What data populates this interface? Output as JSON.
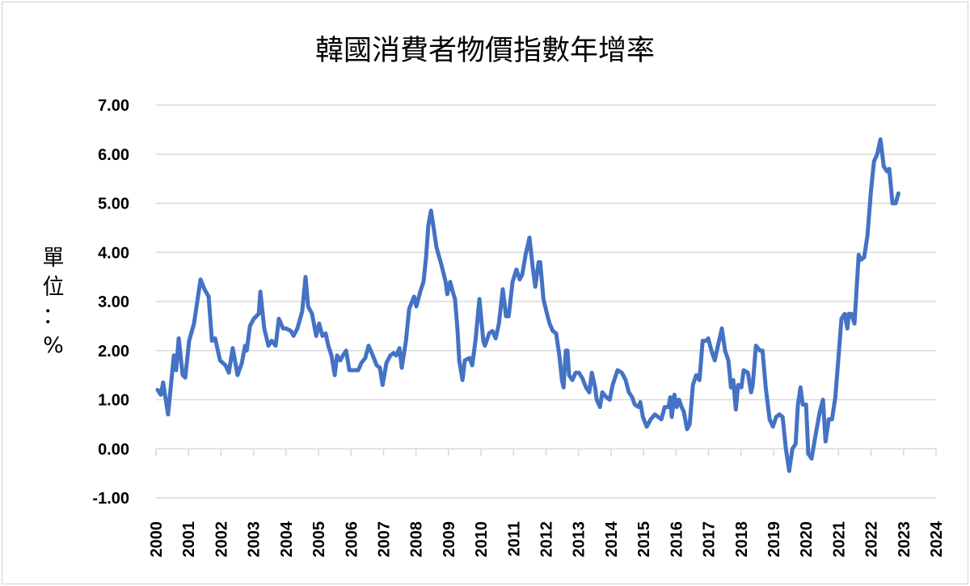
{
  "chart_data": {
    "type": "line",
    "title": "韓國消費者物價指數年增率",
    "ylabel": "單位：%",
    "ylabel_chars": [
      "單",
      "位",
      "：",
      "%"
    ],
    "xlabel": "",
    "ylim": [
      -1,
      7
    ],
    "xlim": [
      2000,
      2024
    ],
    "y_ticks": [
      "7.00",
      "6.00",
      "5.00",
      "4.00",
      "3.00",
      "2.00",
      "1.00",
      "0.00",
      "-1.00"
    ],
    "y_tick_values": [
      7,
      6,
      5,
      4,
      3,
      2,
      1,
      0,
      -1
    ],
    "x_ticks": [
      "2000",
      "2001",
      "2002",
      "2003",
      "2004",
      "2005",
      "2006",
      "2007",
      "2008",
      "2009",
      "2010",
      "2011",
      "2012",
      "2013",
      "2014",
      "2015",
      "2016",
      "2017",
      "2018",
      "2019",
      "2020",
      "2021",
      "2022",
      "2023",
      "2024"
    ],
    "grid": true,
    "legend": "none",
    "line_color": "#4472C4",
    "series": [
      {
        "points": [
          [
            2000.05,
            1.2
          ],
          [
            2000.15,
            1.1
          ],
          [
            2000.22,
            1.35
          ],
          [
            2000.37,
            0.7
          ],
          [
            2000.55,
            1.9
          ],
          [
            2000.62,
            1.6
          ],
          [
            2000.7,
            2.25
          ],
          [
            2000.82,
            1.5
          ],
          [
            2000.9,
            1.45
          ],
          [
            2001.02,
            2.2
          ],
          [
            2001.17,
            2.55
          ],
          [
            2001.37,
            3.45
          ],
          [
            2001.49,
            3.25
          ],
          [
            2001.62,
            3.1
          ],
          [
            2001.72,
            2.2
          ],
          [
            2001.82,
            2.25
          ],
          [
            2001.97,
            1.8
          ],
          [
            2002.14,
            1.7
          ],
          [
            2002.24,
            1.55
          ],
          [
            2002.36,
            2.05
          ],
          [
            2002.51,
            1.5
          ],
          [
            2002.64,
            1.75
          ],
          [
            2002.74,
            2.1
          ],
          [
            2002.79,
            2.0
          ],
          [
            2002.89,
            2.5
          ],
          [
            2003.01,
            2.65
          ],
          [
            2003.16,
            2.75
          ],
          [
            2003.21,
            3.2
          ],
          [
            2003.33,
            2.45
          ],
          [
            2003.46,
            2.1
          ],
          [
            2003.56,
            2.2
          ],
          [
            2003.68,
            2.1
          ],
          [
            2003.78,
            2.65
          ],
          [
            2003.91,
            2.45
          ],
          [
            2004.0,
            2.45
          ],
          [
            2004.15,
            2.4
          ],
          [
            2004.23,
            2.3
          ],
          [
            2004.35,
            2.45
          ],
          [
            2004.5,
            2.8
          ],
          [
            2004.6,
            3.5
          ],
          [
            2004.68,
            2.9
          ],
          [
            2004.8,
            2.75
          ],
          [
            2004.93,
            2.3
          ],
          [
            2005.02,
            2.55
          ],
          [
            2005.12,
            2.3
          ],
          [
            2005.22,
            2.35
          ],
          [
            2005.3,
            2.1
          ],
          [
            2005.4,
            1.9
          ],
          [
            2005.5,
            1.5
          ],
          [
            2005.57,
            1.9
          ],
          [
            2005.67,
            1.8
          ],
          [
            2005.75,
            1.9
          ],
          [
            2005.85,
            2.0
          ],
          [
            2005.95,
            1.6
          ],
          [
            2006.09,
            1.6
          ],
          [
            2006.22,
            1.6
          ],
          [
            2006.32,
            1.75
          ],
          [
            2006.44,
            1.85
          ],
          [
            2006.54,
            2.1
          ],
          [
            2006.67,
            1.9
          ],
          [
            2006.79,
            1.7
          ],
          [
            2006.89,
            1.65
          ],
          [
            2006.97,
            1.3
          ],
          [
            2007.09,
            1.75
          ],
          [
            2007.21,
            1.9
          ],
          [
            2007.31,
            1.95
          ],
          [
            2007.39,
            1.9
          ],
          [
            2007.49,
            2.05
          ],
          [
            2007.56,
            1.65
          ],
          [
            2007.69,
            2.2
          ],
          [
            2007.79,
            2.85
          ],
          [
            2007.94,
            3.1
          ],
          [
            2008.01,
            2.9
          ],
          [
            2008.13,
            3.2
          ],
          [
            2008.23,
            3.4
          ],
          [
            2008.31,
            3.9
          ],
          [
            2008.38,
            4.55
          ],
          [
            2008.46,
            4.85
          ],
          [
            2008.53,
            4.55
          ],
          [
            2008.63,
            4.1
          ],
          [
            2008.78,
            3.75
          ],
          [
            2008.91,
            3.4
          ],
          [
            2008.96,
            3.15
          ],
          [
            2009.05,
            3.4
          ],
          [
            2009.13,
            3.2
          ],
          [
            2009.2,
            3.05
          ],
          [
            2009.28,
            2.4
          ],
          [
            2009.33,
            1.8
          ],
          [
            2009.43,
            1.4
          ],
          [
            2009.5,
            1.8
          ],
          [
            2009.65,
            1.85
          ],
          [
            2009.73,
            1.7
          ],
          [
            2009.83,
            2.2
          ],
          [
            2009.95,
            3.05
          ],
          [
            2010.07,
            2.2
          ],
          [
            2010.12,
            2.1
          ],
          [
            2010.25,
            2.35
          ],
          [
            2010.35,
            2.4
          ],
          [
            2010.45,
            2.25
          ],
          [
            2010.55,
            2.55
          ],
          [
            2010.67,
            3.25
          ],
          [
            2010.77,
            2.7
          ],
          [
            2010.85,
            2.7
          ],
          [
            2010.97,
            3.4
          ],
          [
            2011.09,
            3.65
          ],
          [
            2011.19,
            3.45
          ],
          [
            2011.27,
            3.55
          ],
          [
            2011.37,
            3.95
          ],
          [
            2011.49,
            4.3
          ],
          [
            2011.59,
            3.7
          ],
          [
            2011.67,
            3.3
          ],
          [
            2011.77,
            3.8
          ],
          [
            2011.82,
            3.8
          ],
          [
            2011.92,
            3.05
          ],
          [
            2012.01,
            2.8
          ],
          [
            2012.11,
            2.55
          ],
          [
            2012.21,
            2.4
          ],
          [
            2012.31,
            2.35
          ],
          [
            2012.41,
            1.9
          ],
          [
            2012.49,
            1.4
          ],
          [
            2012.54,
            1.25
          ],
          [
            2012.61,
            2.0
          ],
          [
            2012.66,
            2.0
          ],
          [
            2012.71,
            1.5
          ],
          [
            2012.81,
            1.4
          ],
          [
            2012.91,
            1.55
          ],
          [
            2013.01,
            1.55
          ],
          [
            2013.11,
            1.45
          ],
          [
            2013.23,
            1.25
          ],
          [
            2013.33,
            1.15
          ],
          [
            2013.41,
            1.55
          ],
          [
            2013.51,
            1.25
          ],
          [
            2013.56,
            1.0
          ],
          [
            2013.66,
            0.85
          ],
          [
            2013.73,
            1.15
          ],
          [
            2013.86,
            1.05
          ],
          [
            2013.96,
            1.0
          ],
          [
            2014.05,
            1.3
          ],
          [
            2014.2,
            1.6
          ],
          [
            2014.33,
            1.55
          ],
          [
            2014.45,
            1.4
          ],
          [
            2014.55,
            1.15
          ],
          [
            2014.65,
            1.05
          ],
          [
            2014.73,
            0.9
          ],
          [
            2014.85,
            0.85
          ],
          [
            2014.9,
            0.95
          ],
          [
            2014.98,
            0.65
          ],
          [
            2015.1,
            0.45
          ],
          [
            2015.22,
            0.6
          ],
          [
            2015.35,
            0.7
          ],
          [
            2015.45,
            0.65
          ],
          [
            2015.55,
            0.6
          ],
          [
            2015.65,
            0.85
          ],
          [
            2015.77,
            0.85
          ],
          [
            2015.82,
            1.05
          ],
          [
            2015.87,
            0.65
          ],
          [
            2015.95,
            1.1
          ],
          [
            2016.02,
            0.85
          ],
          [
            2016.09,
            1.0
          ],
          [
            2016.17,
            0.85
          ],
          [
            2016.24,
            0.75
          ],
          [
            2016.34,
            0.4
          ],
          [
            2016.42,
            0.5
          ],
          [
            2016.52,
            1.3
          ],
          [
            2016.62,
            1.5
          ],
          [
            2016.72,
            1.4
          ],
          [
            2016.82,
            2.2
          ],
          [
            2016.94,
            2.2
          ],
          [
            2016.99,
            2.25
          ],
          [
            2017.09,
            2.0
          ],
          [
            2017.19,
            1.8
          ],
          [
            2017.29,
            2.1
          ],
          [
            2017.41,
            2.45
          ],
          [
            2017.51,
            2.0
          ],
          [
            2017.61,
            1.8
          ],
          [
            2017.69,
            1.25
          ],
          [
            2017.76,
            1.4
          ],
          [
            2017.84,
            0.8
          ],
          [
            2017.91,
            1.3
          ],
          [
            2018.01,
            1.25
          ],
          [
            2018.08,
            1.6
          ],
          [
            2018.21,
            1.55
          ],
          [
            2018.31,
            1.15
          ],
          [
            2018.36,
            1.3
          ],
          [
            2018.46,
            2.1
          ],
          [
            2018.58,
            2.0
          ],
          [
            2018.66,
            2.0
          ],
          [
            2018.76,
            1.25
          ],
          [
            2018.88,
            0.6
          ],
          [
            2018.98,
            0.45
          ],
          [
            2019.08,
            0.65
          ],
          [
            2019.18,
            0.7
          ],
          [
            2019.28,
            0.65
          ],
          [
            2019.38,
            0.0
          ],
          [
            2019.48,
            -0.45
          ],
          [
            2019.58,
            0.0
          ],
          [
            2019.68,
            0.1
          ],
          [
            2019.75,
            0.9
          ],
          [
            2019.83,
            1.25
          ],
          [
            2019.9,
            0.9
          ],
          [
            2020.0,
            0.9
          ],
          [
            2020.07,
            -0.1
          ],
          [
            2020.17,
            -0.2
          ],
          [
            2020.3,
            0.3
          ],
          [
            2020.42,
            0.75
          ],
          [
            2020.52,
            1.0
          ],
          [
            2020.6,
            0.15
          ],
          [
            2020.7,
            0.6
          ],
          [
            2020.8,
            0.6
          ],
          [
            2020.9,
            1.05
          ],
          [
            2020.99,
            1.8
          ],
          [
            2021.09,
            2.65
          ],
          [
            2021.19,
            2.75
          ],
          [
            2021.27,
            2.45
          ],
          [
            2021.32,
            2.75
          ],
          [
            2021.39,
            2.75
          ],
          [
            2021.49,
            2.55
          ],
          [
            2021.62,
            3.95
          ],
          [
            2021.69,
            3.85
          ],
          [
            2021.79,
            3.9
          ],
          [
            2021.89,
            4.35
          ],
          [
            2021.99,
            5.2
          ],
          [
            2022.09,
            5.85
          ],
          [
            2022.19,
            6.0
          ],
          [
            2022.29,
            6.3
          ],
          [
            2022.39,
            5.75
          ],
          [
            2022.49,
            5.65
          ],
          [
            2022.56,
            5.7
          ],
          [
            2022.66,
            5.0
          ],
          [
            2022.76,
            5.0
          ],
          [
            2022.84,
            5.2
          ]
        ]
      }
    ]
  }
}
